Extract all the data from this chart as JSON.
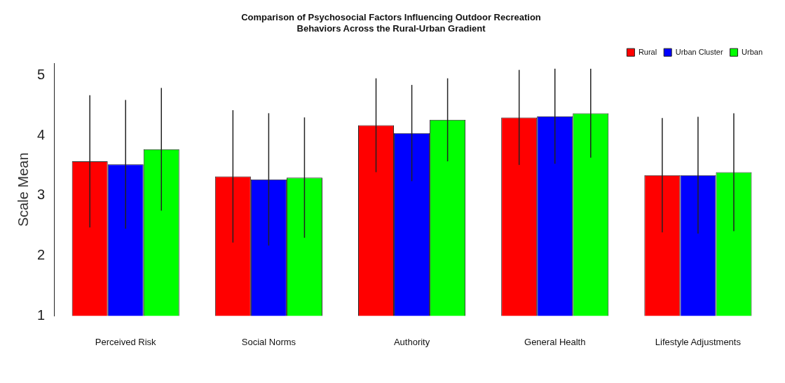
{
  "chart_data": {
    "type": "bar",
    "title": "Comparison of Psychosocial Factors Influencing Outdoor Recreation\nBehaviors Across the Rural-Urban Gradient",
    "ylabel": "Scale Mean",
    "categories": [
      "Perceived Risk",
      "Social Norms",
      "Authority",
      "General Health",
      "Lifestyle Adjustments"
    ],
    "series": [
      {
        "name": "Rural",
        "color": "#ff0000",
        "values": [
          3.57,
          3.32,
          4.17,
          4.3,
          3.34
        ],
        "errors": [
          1.1,
          1.1,
          0.78,
          0.79,
          0.95
        ]
      },
      {
        "name": "Urban Cluster",
        "color": "#0000ff",
        "values": [
          3.52,
          3.27,
          4.04,
          4.32,
          3.34
        ],
        "errors": [
          1.07,
          1.1,
          0.8,
          0.79,
          0.97
        ]
      },
      {
        "name": "Urban",
        "color": "#00ff00",
        "values": [
          3.77,
          3.3,
          4.26,
          4.37,
          3.39
        ],
        "errors": [
          1.02,
          1.0,
          0.69,
          0.74,
          0.98
        ]
      }
    ],
    "ylim": [
      1,
      5.2
    ],
    "yticks": [
      1,
      2,
      3,
      4,
      5
    ],
    "grid": false,
    "legend": "top right"
  }
}
